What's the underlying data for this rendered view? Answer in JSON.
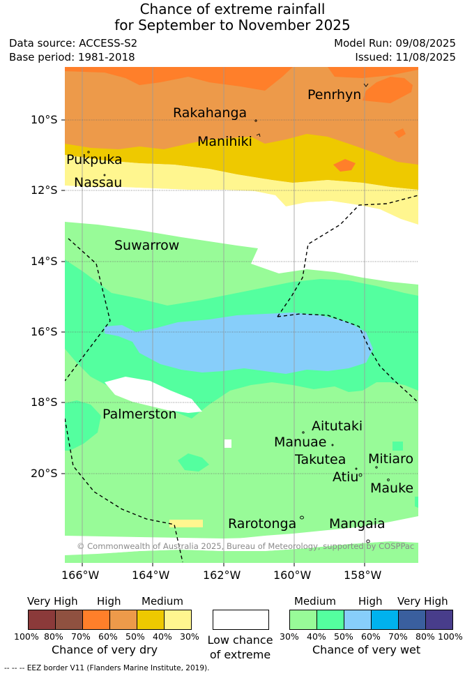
{
  "title": {
    "line1": "Chance of extreme rainfall",
    "line2": "for September to November 2025"
  },
  "meta": {
    "data_source": "Data source: ACCESS-S2",
    "base_period": "Base period: 1981-2018",
    "model_run": "Model Run: 09/08/2025",
    "issued": "Issued: 11/08/2025"
  },
  "axes": {
    "latitudes": [
      "10°S",
      "12°S",
      "14°S",
      "16°S",
      "18°S",
      "20°S"
    ],
    "longitudes": [
      "166°W",
      "164°W",
      "162°W",
      "160°W",
      "158°W"
    ]
  },
  "places": {
    "penrhyn": "Penrhyn",
    "rakahanga": "Rakahanga",
    "manihiki": "Manihiki",
    "pukpuka": "Pukpuka",
    "nassau": "Nassau",
    "suwarrow": "Suwarrow",
    "palmerston": "Palmerston",
    "aitutaki": "Aitutaki",
    "manuae": "Manuae",
    "takutea": "Takutea",
    "mitiaro": "Mitiaro",
    "atiu": "Atiu",
    "mauke": "Mauke",
    "rarotonga": "Rarotonga",
    "mangaia": "Mangaia"
  },
  "copyright": "© Commonwealth of Australia 2025, Bureau of Meteorology, supported by COSPPac",
  "legend": {
    "dry": {
      "headers": [
        "Very High",
        "High",
        "Medium"
      ],
      "colors": [
        "#8b3a3a",
        "#8f5140",
        "#ff7f2a",
        "#ed9a4a",
        "#eec900",
        "#fff68f"
      ],
      "ticks": [
        "100%",
        "80%",
        "70%",
        "60%",
        "50%",
        "40%",
        "30%"
      ],
      "caption": "Chance of very dry"
    },
    "low": {
      "color": "#ffffff",
      "caption_line1": "Low chance",
      "caption_line2": "of extreme"
    },
    "wet": {
      "headers": [
        "Medium",
        "High",
        "Very High"
      ],
      "colors": [
        "#98fb98",
        "#54ff9f",
        "#87cefa",
        "#00b2ee",
        "#3a5f9e",
        "#483d8b"
      ],
      "ticks": [
        "30%",
        "40%",
        "50%",
        "60%",
        "70%",
        "80%",
        "100%"
      ],
      "caption": "Chance of very wet"
    }
  },
  "footnote": "--  --  -- EEZ border V11 (Flanders Marine Institute, 2019).",
  "colors": {
    "orange_high": "#ff7f2a",
    "orange_mid": "#ed9a4a",
    "gold": "#eec900",
    "pale_yellow": "#fff68f",
    "light_green": "#98fb98",
    "sea_green": "#54ff9f",
    "sky_blue": "#87cefa"
  }
}
